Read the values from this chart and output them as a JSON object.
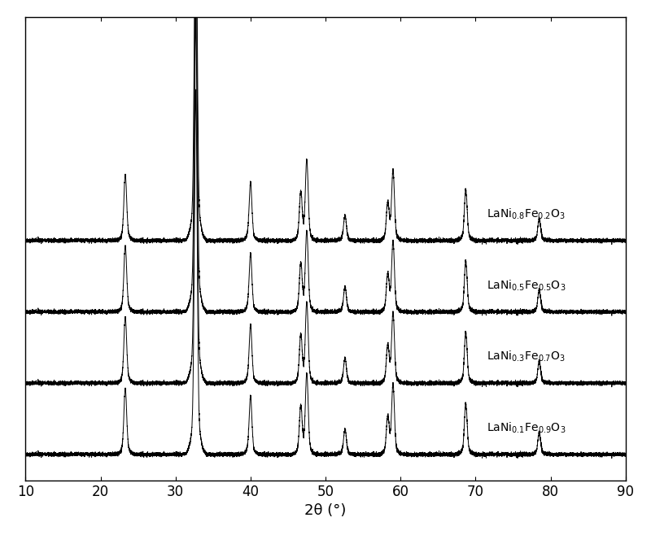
{
  "xlabel": "2θ (°)",
  "xlim": [
    10,
    90
  ],
  "xticks": [
    10,
    20,
    30,
    40,
    50,
    60,
    70,
    80,
    90
  ],
  "background_color": "#ffffff",
  "line_color": "#000000",
  "peak_positions": [
    23.3,
    32.7,
    40.0,
    46.7,
    47.5,
    52.6,
    58.3,
    59.0,
    68.7,
    78.5
  ],
  "offsets": [
    0.0,
    0.22,
    0.44,
    0.66
  ],
  "label_fontsize": 10,
  "figsize": [
    8.0,
    6.58
  ],
  "dpi": 100
}
